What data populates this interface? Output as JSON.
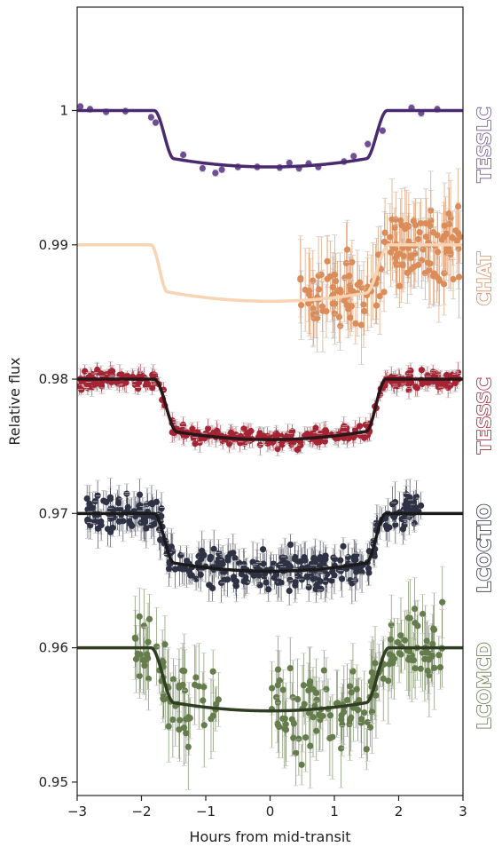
{
  "chart_data": {
    "type": "scatter",
    "xlabel": "Hours from mid-transit",
    "ylabel": "Relative flux",
    "xlim": [
      -3,
      3
    ],
    "ylim": [
      0.949,
      1.0077
    ],
    "x_ticks": [
      -3,
      -2,
      -1,
      0,
      1,
      2,
      3
    ],
    "x_tick_labels": [
      "−3",
      "−2",
      "−1",
      "0",
      "1",
      "2",
      "3"
    ],
    "y_ticks": [
      0.95,
      0.96,
      0.97,
      0.98,
      0.99,
      1.0
    ],
    "y_tick_labels": [
      "0.95",
      "0.96",
      "0.97",
      "0.98",
      "0.99",
      "1"
    ],
    "grid": false,
    "legend": "instrument names printed vertically along the right edge",
    "series": [
      {
        "name": "TESSLC",
        "point_color": "#6e4f96",
        "model_color": "#4a2a6e",
        "baseline": 1.0,
        "depth": 0.0042,
        "ingress_start": -1.8,
        "ingress_end": -1.5,
        "egress_start": 1.5,
        "egress_end": 1.82,
        "points": [
          [
            -2.95,
            1.0003
          ],
          [
            -2.8,
            1.0001
          ],
          [
            -2.55,
            0.9999
          ],
          [
            -2.25,
            0.99995
          ],
          [
            -1.85,
            0.9995
          ],
          [
            -1.78,
            0.9991
          ],
          [
            -1.35,
            0.9967
          ],
          [
            -1.05,
            0.9957
          ],
          [
            -0.85,
            0.99535
          ],
          [
            -0.75,
            0.9956
          ],
          [
            -0.5,
            0.9958
          ],
          [
            -0.2,
            0.9958
          ],
          [
            0.15,
            0.99575
          ],
          [
            0.3,
            0.9961
          ],
          [
            0.45,
            0.9957
          ],
          [
            0.6,
            0.99605
          ],
          [
            0.75,
            0.9958
          ],
          [
            1.15,
            0.9962
          ],
          [
            1.3,
            0.9966
          ],
          [
            1.52,
            0.9975
          ],
          [
            1.75,
            0.9985
          ],
          [
            2.2,
            1.0002
          ],
          [
            2.35,
            0.9998
          ],
          [
            2.6,
            1.0001
          ]
        ]
      },
      {
        "name": "CHAT",
        "point_color": "#dc8c58",
        "model_color": "#f8d4b4",
        "baseline": 0.99,
        "depth": 0.0042,
        "ingress_start": -1.85,
        "ingress_end": -1.6,
        "egress_start": 1.5,
        "egress_end": 1.85,
        "x_range": [
          0.45,
          3.0
        ],
        "scatter": 0.0025
      },
      {
        "name": "TESSSC",
        "point_color": "#a52433",
        "model_color": "#2a1518",
        "baseline": 0.98,
        "depth": 0.0045,
        "ingress_start": -1.8,
        "ingress_end": -1.45,
        "egress_start": 1.5,
        "egress_end": 1.8,
        "x_range": [
          -3.0,
          3.0
        ],
        "scatter": 0.0006
      },
      {
        "name": "LCOCTIO",
        "point_color": "#2e3244",
        "model_color": "#1a1a1a",
        "baseline": 0.97,
        "depth": 0.0043,
        "ingress_start": -1.8,
        "ingress_end": -1.5,
        "egress_start": 1.5,
        "egress_end": 1.8,
        "x_range": [
          -2.85,
          2.35
        ],
        "scatter": 0.0012
      },
      {
        "name": "LCOMCD",
        "point_color": "#657c4c",
        "model_color": "#2f3d22",
        "baseline": 0.96,
        "depth": 0.0047,
        "ingress_start": -1.85,
        "ingress_end": -1.5,
        "egress_start": 1.5,
        "egress_end": 1.85,
        "x_range": [
          -2.1,
          2.7
        ],
        "gap": [
          -0.8,
          0.0
        ],
        "scatter": 0.0025
      }
    ]
  }
}
